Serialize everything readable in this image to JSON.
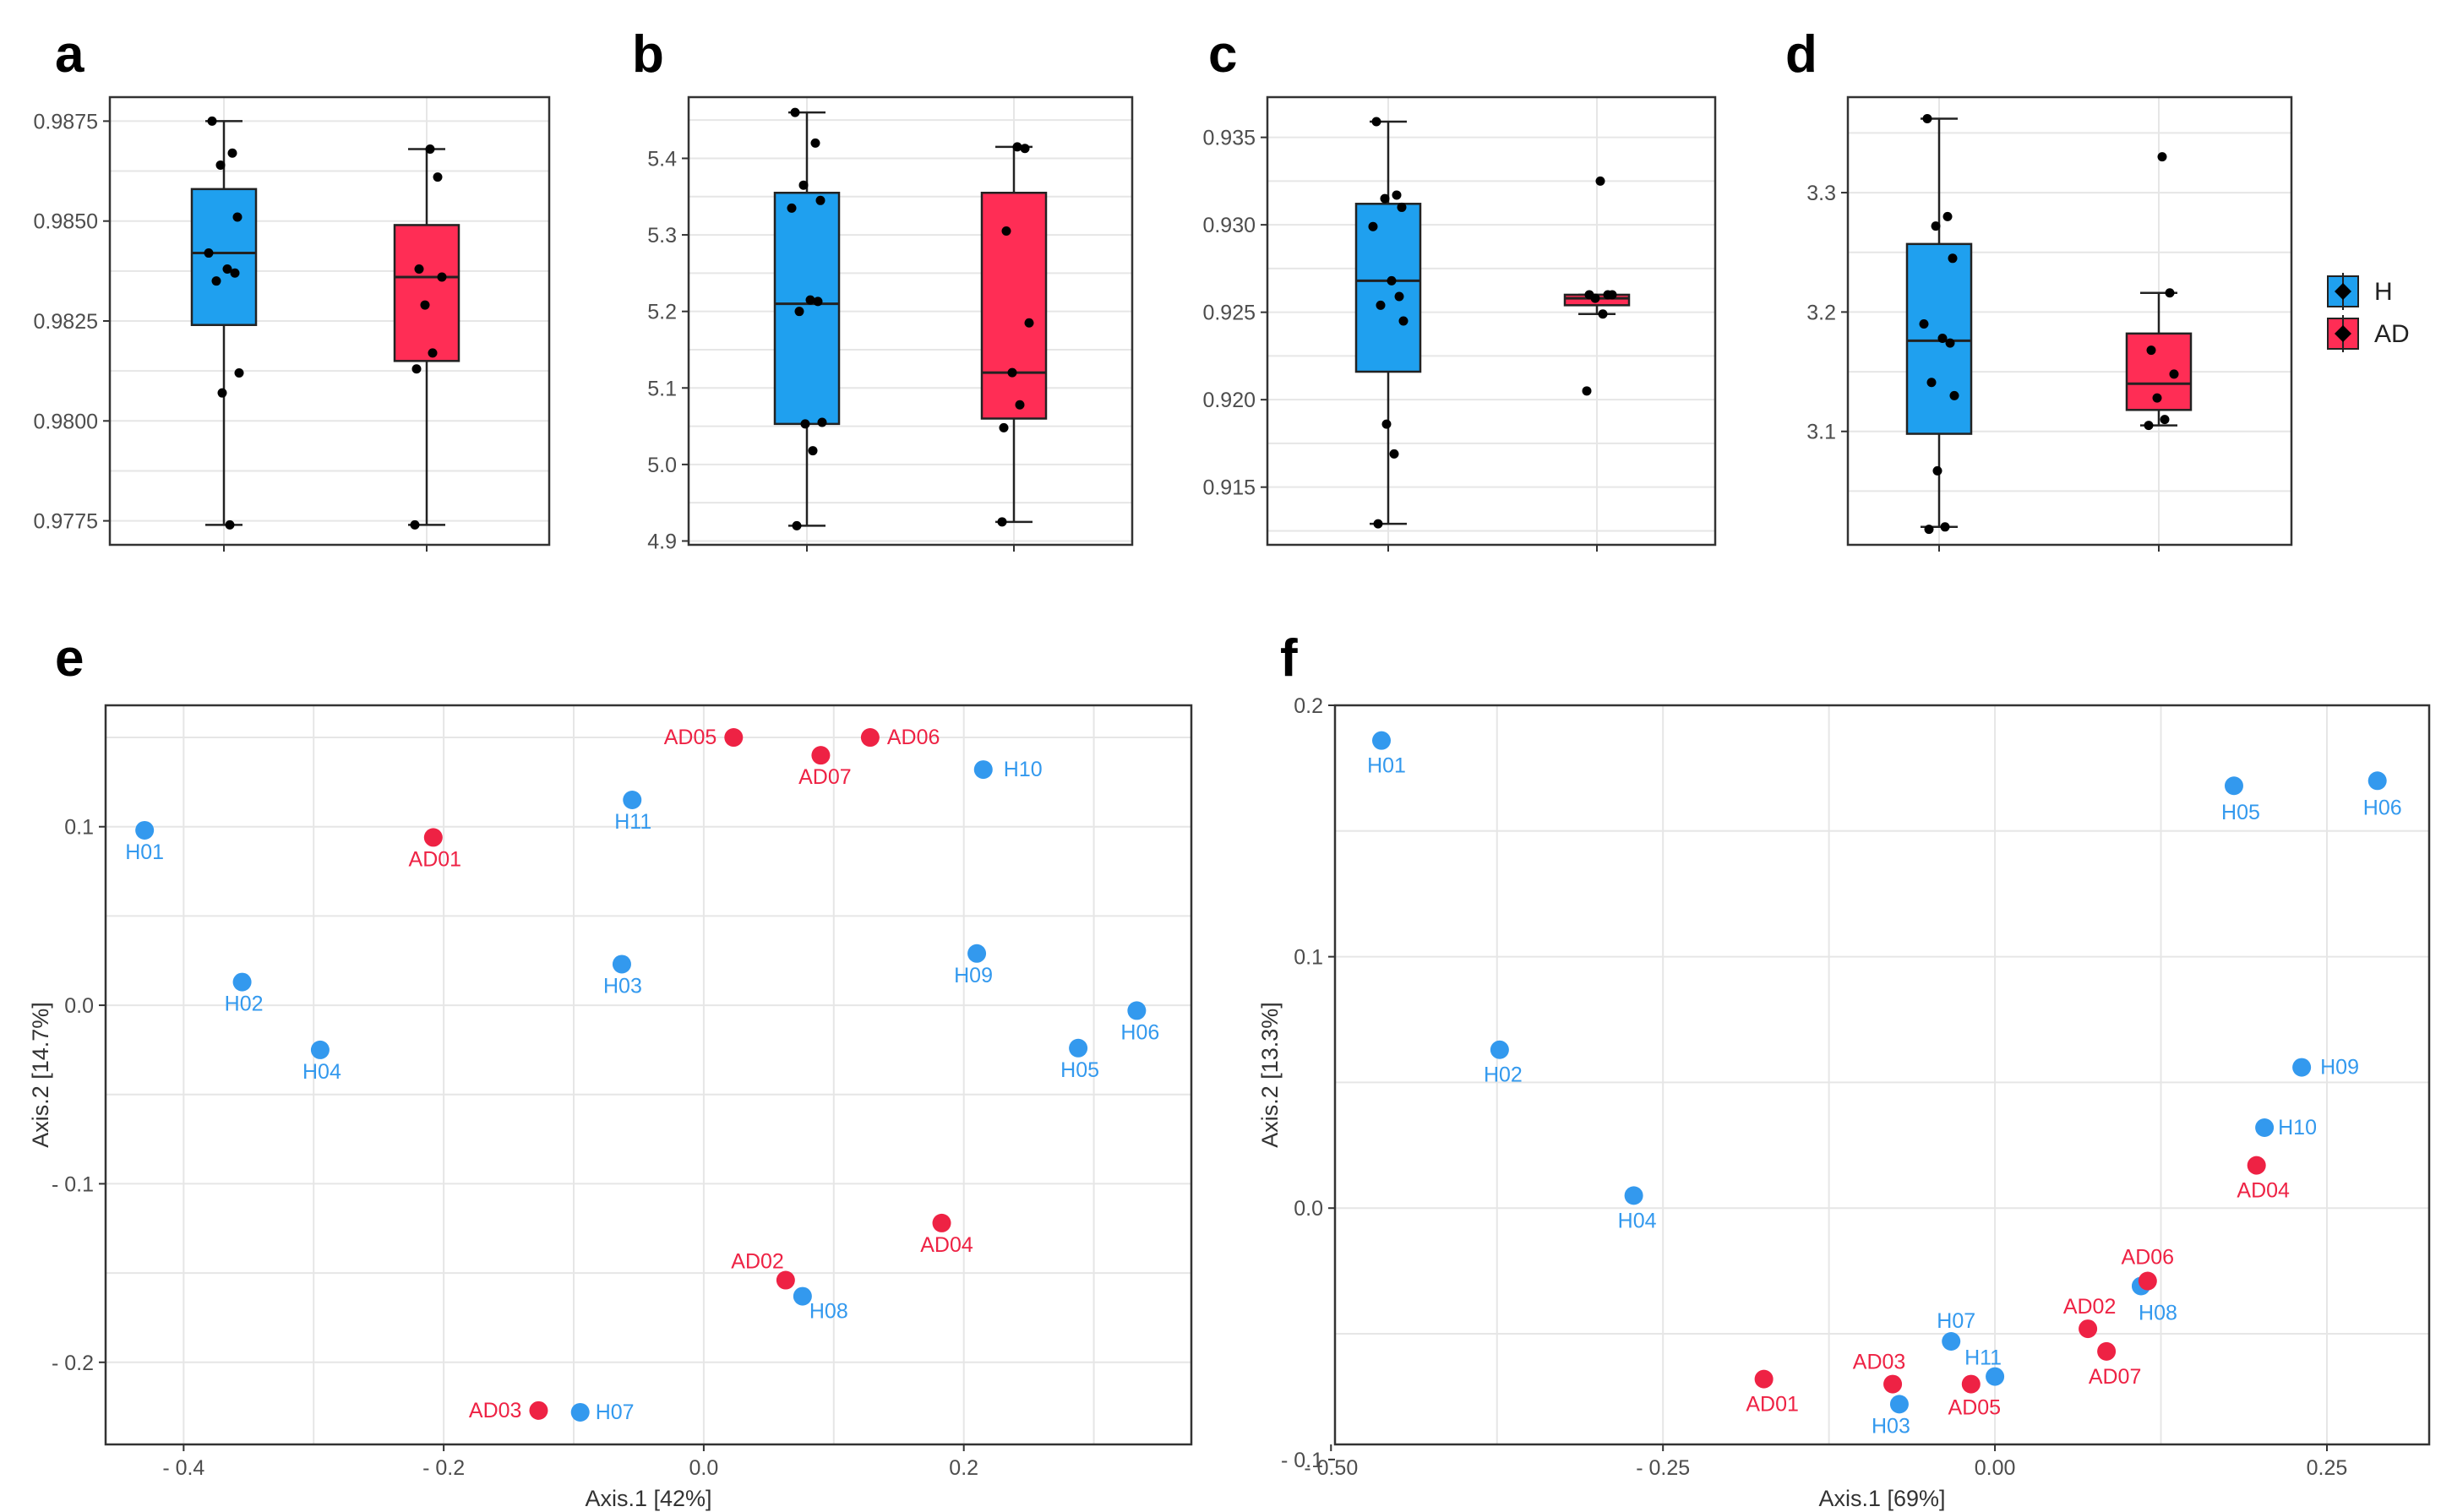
{
  "colors": {
    "H": "#1fa0ef",
    "AD": "#ff2d55",
    "H_point": "#3399ee",
    "AD_point": "#ee2244",
    "axis_text": "#4d4d4d",
    "grid": "#e6e6e6"
  },
  "legend": {
    "entries": [
      "H",
      "AD"
    ]
  },
  "chart_data": [
    {
      "id": "a",
      "type": "box",
      "panel_label": "a",
      "ylim": [
        0.9769,
        0.9881
      ],
      "yticks": [
        0.9775,
        0.98,
        0.9825,
        0.985,
        0.9875
      ],
      "ytick_labels": [
        "0.9775",
        "0.9800",
        "0.9825",
        "0.9850",
        "0.9875"
      ],
      "groups": [
        {
          "name": "H",
          "min": 0.9774,
          "q1": 0.9824,
          "median": 0.9842,
          "q3": 0.9858,
          "max": 0.9875,
          "points": [
            0.9875,
            0.9867,
            0.9864,
            0.9851,
            0.9842,
            0.9838,
            0.9837,
            0.9835,
            0.9812,
            0.9807,
            0.9774
          ]
        },
        {
          "name": "AD",
          "min": 0.9774,
          "q1": 0.9815,
          "median": 0.9836,
          "q3": 0.9849,
          "max": 0.9868,
          "points": [
            0.9868,
            0.9861,
            0.9838,
            0.9836,
            0.9829,
            0.9817,
            0.9813,
            0.9774
          ]
        }
      ]
    },
    {
      "id": "b",
      "type": "box",
      "panel_label": "b",
      "ylim": [
        4.895,
        5.48
      ],
      "yticks": [
        4.9,
        5.0,
        5.1,
        5.2,
        5.3,
        5.4
      ],
      "ytick_labels": [
        "4.9",
        "5.0",
        "5.1",
        "5.2",
        "5.3",
        "5.4"
      ],
      "groups": [
        {
          "name": "H",
          "min": 4.92,
          "q1": 5.053,
          "median": 5.21,
          "q3": 5.355,
          "max": 5.46,
          "points": [
            5.46,
            5.42,
            5.365,
            5.345,
            5.335,
            5.215,
            5.213,
            5.2,
            5.055,
            5.053,
            5.018,
            4.92
          ]
        },
        {
          "name": "AD",
          "min": 4.925,
          "q1": 5.06,
          "median": 5.12,
          "q3": 5.355,
          "max": 5.415,
          "points": [
            5.415,
            5.413,
            5.305,
            5.185,
            5.12,
            5.078,
            5.048,
            4.925
          ]
        }
      ]
    },
    {
      "id": "c",
      "type": "box",
      "panel_label": "c",
      "ylim": [
        0.9117,
        0.9373
      ],
      "yticks": [
        0.915,
        0.92,
        0.925,
        0.93,
        0.935
      ],
      "ytick_labels": [
        "0.915",
        "0.920",
        "0.925",
        "0.930",
        "0.935"
      ],
      "groups": [
        {
          "name": "H",
          "min": 0.9129,
          "q1": 0.9216,
          "median": 0.9268,
          "q3": 0.9312,
          "max": 0.9359,
          "points": [
            0.9359,
            0.9317,
            0.9315,
            0.931,
            0.9299,
            0.9268,
            0.9259,
            0.9254,
            0.9245,
            0.9186,
            0.9169,
            0.9129
          ]
        },
        {
          "name": "AD",
          "min": 0.9249,
          "q1": 0.9254,
          "median": 0.9258,
          "q3": 0.926,
          "max": 0.926,
          "points": [
            0.9325,
            0.926,
            0.926,
            0.926,
            0.9258,
            0.9249,
            0.9205
          ]
        }
      ]
    },
    {
      "id": "d",
      "type": "box",
      "panel_label": "d",
      "ylim": [
        3.005,
        3.38
      ],
      "yticks": [
        3.1,
        3.2,
        3.3
      ],
      "ytick_labels": [
        "3.1",
        "3.2",
        "3.3"
      ],
      "groups": [
        {
          "name": "H",
          "min": 3.02,
          "q1": 3.098,
          "median": 3.176,
          "q3": 3.257,
          "max": 3.362,
          "points": [
            3.362,
            3.28,
            3.272,
            3.245,
            3.19,
            3.178,
            3.174,
            3.141,
            3.13,
            3.067,
            3.02,
            3.018
          ]
        },
        {
          "name": "AD",
          "min": 3.105,
          "q1": 3.118,
          "median": 3.14,
          "q3": 3.182,
          "max": 3.216,
          "points": [
            3.33,
            3.216,
            3.168,
            3.148,
            3.128,
            3.11,
            3.105
          ]
        }
      ]
    },
    {
      "id": "e",
      "type": "scatter",
      "panel_label": "e",
      "xlabel": "Axis.1   [42%]",
      "ylabel": "Axis.2   [14.7%]",
      "xlim": [
        -0.46,
        0.375
      ],
      "ylim": [
        -0.246,
        0.168
      ],
      "xticks": [
        -0.4,
        -0.2,
        0.0,
        0.2
      ],
      "xtick_labels": [
        "- 0.4",
        "- 0.2",
        "0.0",
        "0.2"
      ],
      "yticks": [
        -0.2,
        -0.1,
        0.0,
        0.1
      ],
      "ytick_labels": [
        "- 0.2",
        "- 0.1",
        "0.0",
        "0.1"
      ],
      "points": [
        {
          "label": "H01",
          "group": "H",
          "x": -0.43,
          "y": 0.098
        },
        {
          "label": "H02",
          "group": "H",
          "x": -0.355,
          "y": 0.013
        },
        {
          "label": "H04",
          "group": "H",
          "x": -0.295,
          "y": -0.025
        },
        {
          "label": "H11",
          "group": "H",
          "x": -0.055,
          "y": 0.115
        },
        {
          "label": "H03",
          "group": "H",
          "x": -0.063,
          "y": 0.023
        },
        {
          "label": "H10",
          "group": "H",
          "x": 0.215,
          "y": 0.132
        },
        {
          "label": "H09",
          "group": "H",
          "x": 0.21,
          "y": 0.029
        },
        {
          "label": "H05",
          "group": "H",
          "x": 0.288,
          "y": -0.024
        },
        {
          "label": "H06",
          "group": "H",
          "x": 0.333,
          "y": -0.003
        },
        {
          "label": "H08",
          "group": "H",
          "x": 0.076,
          "y": -0.163
        },
        {
          "label": "H07",
          "group": "H",
          "x": -0.095,
          "y": -0.228
        },
        {
          "label": "AD01",
          "group": "AD",
          "x": -0.208,
          "y": 0.094
        },
        {
          "label": "AD05",
          "group": "AD",
          "x": 0.023,
          "y": 0.15
        },
        {
          "label": "AD07",
          "group": "AD",
          "x": 0.09,
          "y": 0.14
        },
        {
          "label": "AD06",
          "group": "AD",
          "x": 0.128,
          "y": 0.15
        },
        {
          "label": "AD04",
          "group": "AD",
          "x": 0.183,
          "y": -0.122
        },
        {
          "label": "AD02",
          "group": "AD",
          "x": 0.063,
          "y": -0.154
        },
        {
          "label": "AD03",
          "group": "AD",
          "x": -0.127,
          "y": -0.227
        }
      ]
    },
    {
      "id": "f",
      "type": "scatter",
      "panel_label": "f",
      "xlabel": "Axis.1   [69%]",
      "ylabel": "Axis.2   [13.3%]",
      "xlim": [
        -0.497,
        0.327
      ],
      "ylim": [
        -0.094,
        0.2
      ],
      "xticks": [
        -0.5,
        -0.25,
        0.0,
        0.25
      ],
      "xtick_labels": [
        "- 0.50",
        "- 0.25",
        "0.00",
        "0.25"
      ],
      "yticks": [
        -0.1,
        0.0,
        0.1,
        0.2
      ],
      "ytick_labels": [
        "- 0.1",
        "0.0",
        "0.1",
        "0.2"
      ],
      "points": [
        {
          "label": "H01",
          "group": "H",
          "x": -0.462,
          "y": 0.186
        },
        {
          "label": "H02",
          "group": "H",
          "x": -0.373,
          "y": 0.063
        },
        {
          "label": "H04",
          "group": "H",
          "x": -0.272,
          "y": 0.005
        },
        {
          "label": "H05",
          "group": "H",
          "x": 0.18,
          "y": 0.168
        },
        {
          "label": "H06",
          "group": "H",
          "x": 0.288,
          "y": 0.17
        },
        {
          "label": "H09",
          "group": "H",
          "x": 0.231,
          "y": 0.056
        },
        {
          "label": "H10",
          "group": "H",
          "x": 0.203,
          "y": 0.032
        },
        {
          "label": "H08",
          "group": "H",
          "x": 0.11,
          "y": -0.031
        },
        {
          "label": "H07",
          "group": "H",
          "x": -0.033,
          "y": -0.053
        },
        {
          "label": "H11",
          "group": "H",
          "x": 0.0,
          "y": -0.067
        },
        {
          "label": "H03",
          "group": "H",
          "x": -0.072,
          "y": -0.078
        },
        {
          "label": "AD04",
          "group": "AD",
          "x": 0.197,
          "y": 0.017
        },
        {
          "label": "AD06",
          "group": "AD",
          "x": 0.115,
          "y": -0.029
        },
        {
          "label": "AD02",
          "group": "AD",
          "x": 0.07,
          "y": -0.048
        },
        {
          "label": "AD07",
          "group": "AD",
          "x": 0.084,
          "y": -0.057
        },
        {
          "label": "AD03",
          "group": "AD",
          "x": -0.077,
          "y": -0.07
        },
        {
          "label": "AD05",
          "group": "AD",
          "x": -0.018,
          "y": -0.07
        },
        {
          "label": "AD01",
          "group": "AD",
          "x": -0.174,
          "y": -0.068
        }
      ]
    }
  ]
}
